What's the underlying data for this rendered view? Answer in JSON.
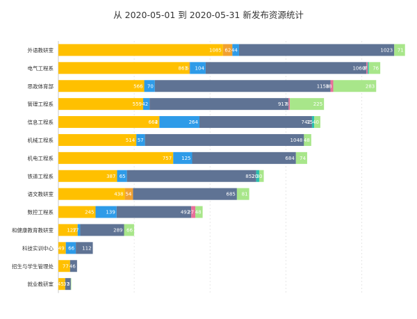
{
  "chart_data": {
    "type": "bar",
    "orientation": "horizontal",
    "stacked": true,
    "title": "从 2020-05-01 到 2020-05-31 新发布资源统计",
    "xlim": [
      0,
      2300
    ],
    "grid": true,
    "categories": [
      "外语教研室",
      "电气工程系",
      "思政体育部",
      "管理工程系",
      "信息工程系",
      "机械工程系",
      "机电工程系",
      "铁道工程系",
      "语文教研室",
      "数控工程系",
      "和健康教育教研室",
      "科技实训中心",
      "招生与学生管理处",
      "就业教研室"
    ],
    "series": [
      {
        "color": "#FFC000",
        "values": [
          1085,
          861,
          566,
          559,
          664,
          514,
          757,
          387,
          438,
          245,
          127,
          49,
          77,
          45
        ]
      },
      {
        "color": "#F0A030",
        "values": [
          62,
          6,
          0,
          0,
          2,
          0,
          0,
          0,
          54,
          0,
          0,
          0,
          0,
          0
        ]
      },
      {
        "color": "#2E9BE8",
        "values": [
          44,
          104,
          70,
          42,
          264,
          57,
          125,
          65,
          0,
          139,
          17,
          66,
          0,
          0
        ]
      },
      {
        "color": "#5F7394",
        "values": [
          1023,
          1060,
          1158,
          917,
          742,
          1048,
          684,
          852,
          685,
          492,
          289,
          112,
          46,
          37
        ]
      },
      {
        "color": "#E8709A",
        "values": [
          0,
          8,
          18,
          8,
          0,
          0,
          0,
          0,
          0,
          27,
          0,
          0,
          0,
          0
        ]
      },
      {
        "color": "#2ABFB0",
        "values": [
          0,
          7,
          0,
          0,
          15,
          0,
          0,
          20,
          0,
          0,
          0,
          0,
          0,
          0
        ]
      },
      {
        "color": "#A8E68A",
        "values": [
          71,
          76,
          283,
          225,
          40,
          48,
          74,
          30,
          81,
          48,
          66,
          0,
          0,
          3
        ]
      }
    ],
    "value_labels": [
      [
        "1085",
        "62",
        "44",
        "1023",
        "",
        "",
        "71"
      ],
      [
        "861",
        "6",
        "104",
        "1060",
        "8",
        "7",
        "76"
      ],
      [
        "566",
        "",
        "70",
        "1158",
        "18",
        "",
        "283"
      ],
      [
        "559",
        "",
        "42",
        "917",
        "8",
        "",
        "225"
      ],
      [
        "664",
        "2",
        "264",
        "742",
        "",
        "15",
        "40"
      ],
      [
        "514",
        "",
        "57",
        "1048",
        "",
        "",
        "48"
      ],
      [
        "757",
        "",
        "125",
        "684",
        "",
        "",
        "74"
      ],
      [
        "387",
        "",
        "65",
        "852",
        "",
        "20",
        "30"
      ],
      [
        "438",
        "54",
        "",
        "685",
        "",
        "",
        "81"
      ],
      [
        "245",
        "",
        "139",
        "492",
        "27",
        "",
        "48"
      ],
      [
        "127",
        "",
        "17",
        "289",
        "",
        "",
        "66"
      ],
      [
        "49",
        "",
        "66",
        "112",
        "",
        "",
        ""
      ],
      [
        "77",
        "",
        "",
        "46",
        "",
        "",
        ""
      ],
      [
        "45",
        "",
        "",
        "37",
        "",
        "",
        "3"
      ]
    ]
  }
}
